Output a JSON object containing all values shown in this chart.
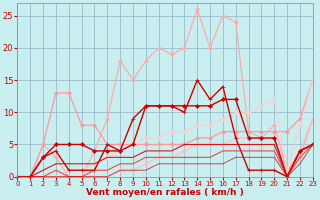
{
  "x": [
    0,
    1,
    2,
    3,
    4,
    5,
    6,
    7,
    8,
    9,
    10,
    11,
    12,
    13,
    14,
    15,
    16,
    17,
    18,
    19,
    20,
    21,
    22,
    23
  ],
  "series": [
    {
      "y": [
        0,
        0,
        5,
        3,
        0,
        0,
        4,
        9,
        18,
        15,
        18,
        20,
        19,
        20,
        26,
        20,
        25,
        24,
        7,
        6,
        8,
        1,
        3,
        9
      ],
      "color": "#ffaaaa",
      "lw": 0.9,
      "marker": "D",
      "ms": 2.0,
      "alpha": 1.0,
      "ls": "-"
    },
    {
      "y": [
        0,
        0,
        5,
        13,
        13,
        8,
        8,
        5,
        5,
        5,
        5,
        5,
        5,
        5,
        6,
        6,
        7,
        7,
        7,
        7,
        7,
        7,
        9,
        15
      ],
      "color": "#ff9999",
      "lw": 0.9,
      "marker": "D",
      "ms": 2.0,
      "alpha": 1.0,
      "ls": "-"
    },
    {
      "y": [
        0,
        0,
        0,
        0,
        0,
        0,
        0,
        0,
        1,
        1,
        2,
        3,
        3,
        4,
        5,
        5,
        5,
        6,
        6,
        6,
        6,
        1,
        4,
        9
      ],
      "color": "#ffbbbb",
      "lw": 0.9,
      "marker": "D",
      "ms": 2.0,
      "alpha": 0.9,
      "ls": "-"
    },
    {
      "y": [
        0,
        0,
        0,
        0,
        1,
        1,
        2,
        3,
        4,
        5,
        6,
        6,
        7,
        7,
        8,
        8,
        9,
        10,
        10,
        11,
        12,
        1,
        8,
        15
      ],
      "color": "#ffcccc",
      "lw": 0.9,
      "marker": "D",
      "ms": 2.0,
      "alpha": 0.9,
      "ls": "-"
    },
    {
      "y": [
        0,
        0,
        3,
        4,
        1,
        1,
        1,
        5,
        4,
        9,
        11,
        11,
        11,
        10,
        15,
        12,
        14,
        6,
        1,
        1,
        1,
        0,
        4,
        5
      ],
      "color": "#cc0000",
      "lw": 1.0,
      "marker": "+",
      "ms": 3.5,
      "alpha": 1.0,
      "ls": "-"
    },
    {
      "y": [
        0,
        0,
        3,
        5,
        5,
        5,
        4,
        4,
        4,
        5,
        11,
        11,
        11,
        11,
        11,
        11,
        12,
        12,
        6,
        6,
        6,
        0,
        4,
        5
      ],
      "color": "#cc0000",
      "lw": 1.0,
      "marker": "D",
      "ms": 2.0,
      "alpha": 1.0,
      "ls": "-"
    },
    {
      "y": [
        0,
        0,
        1,
        2,
        2,
        2,
        2,
        3,
        3,
        3,
        4,
        4,
        4,
        5,
        5,
        5,
        5,
        5,
        5,
        5,
        5,
        0,
        4,
        5
      ],
      "color": "#dd0000",
      "lw": 0.8,
      "marker": null,
      "ms": 0,
      "alpha": 0.9,
      "ls": "-"
    },
    {
      "y": [
        0,
        0,
        0,
        1,
        0,
        0,
        1,
        1,
        2,
        2,
        3,
        3,
        3,
        3,
        3,
        3,
        4,
        4,
        4,
        4,
        4,
        0,
        3,
        5
      ],
      "color": "#ee2222",
      "lw": 0.8,
      "marker": null,
      "ms": 0,
      "alpha": 0.8,
      "ls": "-"
    },
    {
      "y": [
        0,
        0,
        0,
        0,
        0,
        0,
        0,
        0,
        1,
        1,
        1,
        2,
        2,
        2,
        2,
        2,
        2,
        3,
        3,
        3,
        3,
        0,
        2,
        5
      ],
      "color": "#cc0000",
      "lw": 0.7,
      "marker": null,
      "ms": 0,
      "alpha": 0.7,
      "ls": "-"
    }
  ],
  "xlabel": "Vent moyen/en rafales ( km/h )",
  "ylim": [
    0,
    27
  ],
  "xlim": [
    0,
    23
  ],
  "yticks": [
    0,
    5,
    10,
    15,
    20,
    25
  ],
  "xticks": [
    0,
    1,
    2,
    3,
    4,
    5,
    6,
    7,
    8,
    9,
    10,
    11,
    12,
    13,
    14,
    15,
    16,
    17,
    18,
    19,
    20,
    21,
    22,
    23
  ],
  "bg_color": "#c8eef0",
  "grid_color": "#99bbcc",
  "xlabel_color": "#cc0000",
  "tick_color": "#cc0000"
}
